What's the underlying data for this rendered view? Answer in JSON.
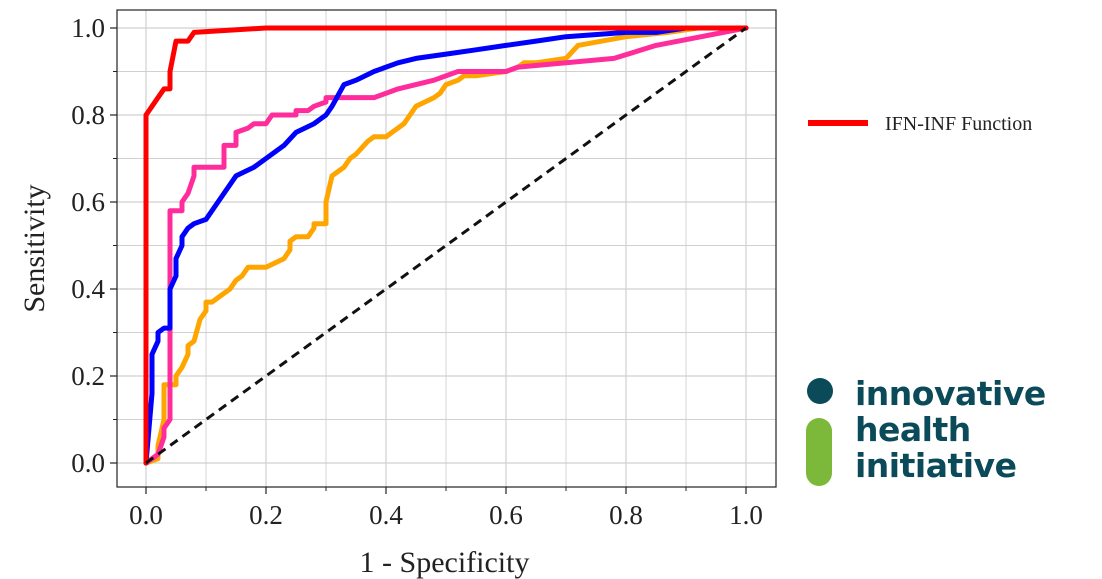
{
  "chart_data": {
    "type": "line",
    "title": "",
    "xlabel": "1 - Specificity",
    "ylabel": "Sensitivity",
    "xlim": [
      0,
      1
    ],
    "ylim": [
      0,
      1
    ],
    "xticks": [
      "0.0",
      "0.2",
      "0.4",
      "0.6",
      "0.8",
      "1.0"
    ],
    "yticks": [
      "0.0",
      "0.2",
      "0.4",
      "0.6",
      "0.8",
      "1.0"
    ],
    "grid": true,
    "legend_position": "right",
    "diagonal": {
      "x": [
        0,
        1
      ],
      "y": [
        0,
        1
      ],
      "style": "dashed",
      "color": "#111111"
    },
    "series": [
      {
        "color": "#ffa500",
        "x": [
          0,
          0.02,
          0.02,
          0.03,
          0.03,
          0.05,
          0.05,
          0.06,
          0.07,
          0.07,
          0.08,
          0.09,
          0.1,
          0.1,
          0.11,
          0.12,
          0.14,
          0.15,
          0.16,
          0.17,
          0.18,
          0.19,
          0.2,
          0.23,
          0.24,
          0.24,
          0.25,
          0.27,
          0.28,
          0.28,
          0.3,
          0.3,
          0.31,
          0.33,
          0.34,
          0.35,
          0.37,
          0.38,
          0.4,
          0.41,
          0.43,
          0.44,
          0.45,
          0.48,
          0.49,
          0.5,
          0.52,
          0.53,
          0.55,
          0.6,
          0.62,
          0.63,
          0.65,
          0.7,
          0.72,
          0.8,
          0.87,
          0.92,
          1.0
        ],
        "y": [
          0,
          0.01,
          0.04,
          0.1,
          0.18,
          0.18,
          0.2,
          0.22,
          0.25,
          0.27,
          0.28,
          0.33,
          0.35,
          0.37,
          0.37,
          0.38,
          0.4,
          0.42,
          0.43,
          0.45,
          0.45,
          0.45,
          0.45,
          0.47,
          0.49,
          0.51,
          0.52,
          0.52,
          0.54,
          0.55,
          0.55,
          0.6,
          0.66,
          0.68,
          0.7,
          0.71,
          0.74,
          0.75,
          0.75,
          0.76,
          0.78,
          0.8,
          0.82,
          0.84,
          0.85,
          0.87,
          0.88,
          0.89,
          0.89,
          0.9,
          0.91,
          0.92,
          0.92,
          0.93,
          0.96,
          0.98,
          0.99,
          1.0,
          1.0
        ]
      },
      {
        "color": "#ff2d9b",
        "x": [
          0,
          0.02,
          0.03,
          0.03,
          0.04,
          0.04,
          0.06,
          0.06,
          0.07,
          0.08,
          0.08,
          0.09,
          0.11,
          0.13,
          0.13,
          0.15,
          0.15,
          0.17,
          0.18,
          0.2,
          0.21,
          0.25,
          0.25,
          0.27,
          0.28,
          0.3,
          0.3,
          0.32,
          0.35,
          0.38,
          0.4,
          0.42,
          0.45,
          0.48,
          0.5,
          0.52,
          0.6,
          0.62,
          0.7,
          0.78,
          0.85,
          1.0
        ],
        "y": [
          0,
          0.02,
          0.06,
          0.08,
          0.1,
          0.58,
          0.58,
          0.6,
          0.62,
          0.66,
          0.68,
          0.68,
          0.68,
          0.68,
          0.73,
          0.73,
          0.76,
          0.77,
          0.78,
          0.78,
          0.8,
          0.8,
          0.81,
          0.81,
          0.82,
          0.83,
          0.84,
          0.84,
          0.84,
          0.84,
          0.85,
          0.86,
          0.87,
          0.88,
          0.89,
          0.9,
          0.9,
          0.91,
          0.92,
          0.93,
          0.96,
          1.0
        ]
      },
      {
        "color": "#0000ff",
        "x": [
          0,
          0.01,
          0.01,
          0.02,
          0.02,
          0.03,
          0.03,
          0.04,
          0.04,
          0.05,
          0.05,
          0.06,
          0.06,
          0.07,
          0.08,
          0.1,
          0.12,
          0.15,
          0.18,
          0.2,
          0.23,
          0.25,
          0.28,
          0.3,
          0.31,
          0.33,
          0.35,
          0.38,
          0.42,
          0.45,
          0.5,
          0.55,
          0.6,
          0.65,
          0.7,
          0.8,
          0.85,
          0.9,
          0.92,
          1.0
        ],
        "y": [
          0,
          0.16,
          0.25,
          0.28,
          0.3,
          0.31,
          0.31,
          0.31,
          0.4,
          0.43,
          0.47,
          0.5,
          0.52,
          0.54,
          0.55,
          0.56,
          0.6,
          0.66,
          0.68,
          0.7,
          0.73,
          0.76,
          0.78,
          0.8,
          0.82,
          0.87,
          0.88,
          0.9,
          0.92,
          0.93,
          0.94,
          0.95,
          0.96,
          0.97,
          0.98,
          0.99,
          0.99,
          1.0,
          1.0,
          1.0
        ]
      },
      {
        "name": "IFN-INF Function",
        "color": "#ff0000",
        "x": [
          0,
          0,
          0.01,
          0.02,
          0.03,
          0.04,
          0.04,
          0.05,
          0.06,
          0.07,
          0.08,
          0.2,
          1.0
        ],
        "y": [
          0,
          0.8,
          0.82,
          0.84,
          0.86,
          0.86,
          0.9,
          0.97,
          0.97,
          0.97,
          0.99,
          1.0,
          1.0
        ]
      }
    ]
  },
  "logo": {
    "lines": [
      "innovative",
      "health",
      "initiative"
    ]
  }
}
